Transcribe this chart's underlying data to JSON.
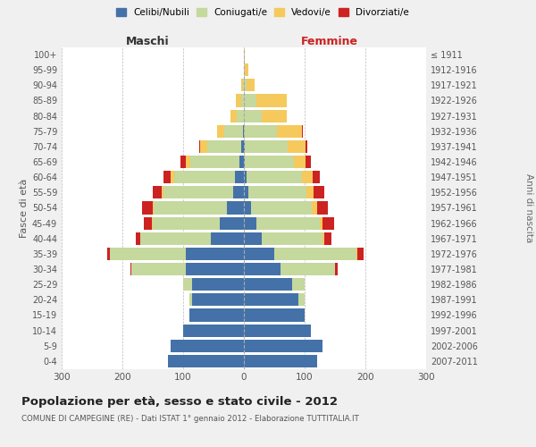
{
  "age_groups": [
    "0-4",
    "5-9",
    "10-14",
    "15-19",
    "20-24",
    "25-29",
    "30-34",
    "35-39",
    "40-44",
    "45-49",
    "50-54",
    "55-59",
    "60-64",
    "65-69",
    "70-74",
    "75-79",
    "80-84",
    "85-89",
    "90-94",
    "95-99",
    "100+"
  ],
  "birth_years": [
    "2007-2011",
    "2002-2006",
    "1997-2001",
    "1992-1996",
    "1987-1991",
    "1982-1986",
    "1977-1981",
    "1972-1976",
    "1967-1971",
    "1962-1966",
    "1957-1961",
    "1952-1956",
    "1947-1951",
    "1942-1946",
    "1937-1941",
    "1932-1936",
    "1927-1931",
    "1922-1926",
    "1917-1921",
    "1912-1916",
    "≤ 1911"
  ],
  "colors": {
    "celibe": "#4472a8",
    "coniugato": "#c5d89d",
    "vedovo": "#f5c95c",
    "divorziato": "#cc2222"
  },
  "males": {
    "celibe": [
      125,
      120,
      100,
      90,
      85,
      85,
      95,
      95,
      55,
      40,
      28,
      18,
      15,
      8,
      5,
      2,
      0,
      0,
      0,
      0,
      0
    ],
    "coniugato": [
      0,
      0,
      0,
      0,
      5,
      15,
      90,
      125,
      115,
      110,
      120,
      115,
      100,
      80,
      55,
      30,
      12,
      5,
      2,
      0,
      0
    ],
    "vedovo": [
      0,
      0,
      0,
      0,
      0,
      0,
      0,
      0,
      0,
      2,
      2,
      2,
      5,
      8,
      12,
      12,
      10,
      8,
      2,
      0,
      0
    ],
    "divorziato": [
      0,
      0,
      0,
      0,
      0,
      0,
      2,
      5,
      8,
      12,
      18,
      15,
      12,
      8,
      2,
      0,
      0,
      0,
      0,
      0,
      0
    ]
  },
  "females": {
    "nubile": [
      120,
      130,
      110,
      100,
      90,
      80,
      60,
      50,
      30,
      20,
      12,
      8,
      5,
      2,
      2,
      0,
      0,
      0,
      0,
      0,
      0
    ],
    "coniugata": [
      0,
      0,
      0,
      0,
      10,
      20,
      90,
      135,
      100,
      105,
      100,
      95,
      90,
      80,
      70,
      55,
      30,
      20,
      5,
      2,
      0
    ],
    "vedova": [
      0,
      0,
      0,
      0,
      0,
      0,
      0,
      2,
      2,
      5,
      8,
      12,
      18,
      20,
      30,
      40,
      40,
      50,
      12,
      5,
      2
    ],
    "divorziata": [
      0,
      0,
      0,
      0,
      0,
      0,
      5,
      10,
      12,
      18,
      18,
      18,
      12,
      8,
      2,
      2,
      0,
      0,
      0,
      0,
      0
    ]
  },
  "xlim": 300,
  "title": "Popolazione per età, sesso e stato civile - 2012",
  "subtitle": "COMUNE DI CAMPEGINE (RE) - Dati ISTAT 1° gennaio 2012 - Elaborazione TUTTITALIA.IT",
  "ylabel_left": "Fasce di età",
  "ylabel_right": "Anni di nascita",
  "header_left": "Maschi",
  "header_right": "Femmine",
  "legend_labels": [
    "Celibi/Nubili",
    "Coniugati/e",
    "Vedovi/e",
    "Divorziati/e"
  ],
  "bg_color": "#f0f0f0",
  "plot_bg": "#ffffff"
}
